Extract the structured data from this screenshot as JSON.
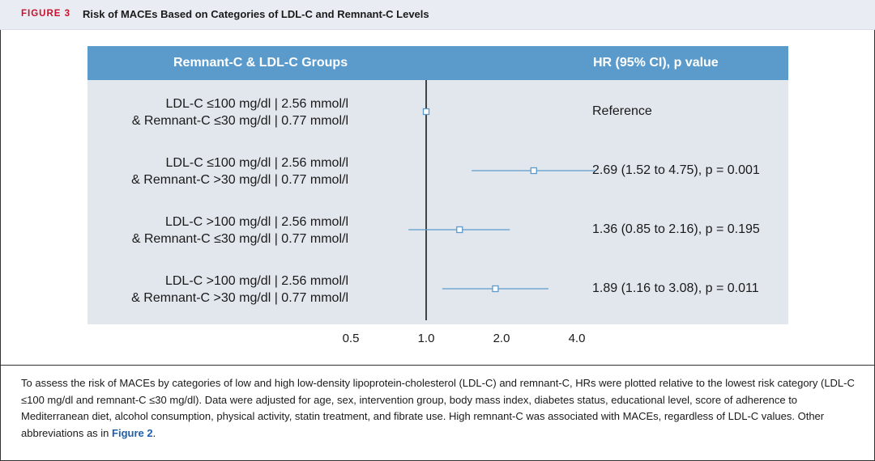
{
  "figure": {
    "label": "FIGURE 3",
    "title": "Risk of MACEs Based on Categories of LDL-C and Remnant-C Levels"
  },
  "table": {
    "col_left": "Remnant-C & LDL-C Groups",
    "col_right": "HR (95% CI), p value"
  },
  "colors": {
    "header": "#5b9bcc",
    "body": "#e2e6ed",
    "marker": "#5b9bcc",
    "title_label": "#c8102e"
  },
  "chart_data": {
    "type": "forest",
    "xscale": "log",
    "xlim": [
      0.5,
      4.0
    ],
    "reference_line": 1.0,
    "ticks": [
      "0.5",
      "1.0",
      "2.0",
      "4.0"
    ],
    "rows": [
      {
        "label_line1": "LDL-C ≤100 mg/dl | 2.56 mmol/l",
        "label_line2": "& Remnant-C ≤30 mg/dl | 0.77 mmol/l",
        "hr": 1.0,
        "lower": 1.0,
        "upper": 1.0,
        "result": "Reference"
      },
      {
        "label_line1": "LDL-C ≤100 mg/dl | 2.56 mmol/l",
        "label_line2": "& Remnant-C >30 mg/dl | 0.77 mmol/l",
        "hr": 2.69,
        "lower": 1.52,
        "upper": 4.75,
        "result": "2.69 (1.52 to 4.75), p = 0.001"
      },
      {
        "label_line1": "LDL-C >100 mg/dl | 2.56 mmol/l",
        "label_line2": "& Remnant-C ≤30 mg/dl | 0.77 mmol/l",
        "hr": 1.36,
        "lower": 0.85,
        "upper": 2.16,
        "result": "1.36 (0.85 to 2.16), p = 0.195"
      },
      {
        "label_line1": "LDL-C >100 mg/dl | 2.56 mmol/l",
        "label_line2": "& Remnant-C >30 mg/dl | 0.77 mmol/l",
        "hr": 1.89,
        "lower": 1.16,
        "upper": 3.08,
        "result": "1.89 (1.16 to 3.08), p = 0.011"
      }
    ]
  },
  "caption": {
    "text": "To assess the risk of MACEs by categories of low and high low-density lipoprotein-cholesterol (LDL-C) and remnant-C, HRs were plotted relative to the lowest risk category (LDL-C ≤100 mg/dl and remnant-C ≤30 mg/dl). Data were adjusted for age, sex, intervention group, body mass index, diabetes status, educational level, score of adherence to Mediterranean diet, alcohol consumption, physical activity, statin treatment, and fibrate use. High remnant-C was associated with MACEs, regardless of LDL-C values. Other abbreviations as in ",
    "link": "Figure 2",
    "end": "."
  }
}
